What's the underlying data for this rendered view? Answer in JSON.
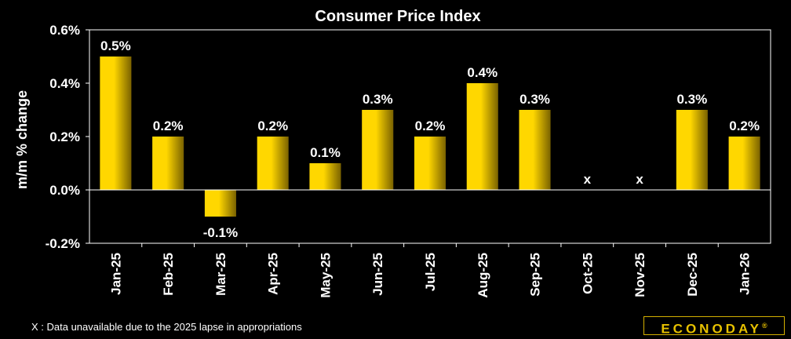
{
  "chart_data": {
    "type": "bar",
    "title": "Consumer Price Index",
    "ylabel": "m/m % change",
    "xlabel": "",
    "ylim": [
      -0.2,
      0.6
    ],
    "yticks": [
      -0.2,
      0.0,
      0.2,
      0.4,
      0.6
    ],
    "ytick_labels": [
      "-0.2%",
      "0.0%",
      "0.2%",
      "0.4%",
      "0.6%"
    ],
    "categories": [
      "Jan-25",
      "Feb-25",
      "Mar-25",
      "Apr-25",
      "May-25",
      "Jun-25",
      "Jul-25",
      "Aug-25",
      "Sep-25",
      "Oct-25",
      "Nov-25",
      "Dec-25",
      "Jan-26"
    ],
    "values": [
      0.5,
      0.2,
      -0.1,
      0.2,
      0.1,
      0.3,
      0.2,
      0.4,
      0.3,
      null,
      null,
      0.3,
      0.2
    ],
    "data_labels": [
      "0.5%",
      "0.2%",
      "-0.1%",
      "0.2%",
      "0.1%",
      "0.3%",
      "0.2%",
      "0.4%",
      "0.3%",
      "x",
      "x",
      "0.3%",
      "0.2%"
    ],
    "grid": false,
    "bar_color_light": "#ffd700",
    "bar_color_dark": "#7a6200",
    "axis_color": "#ffffff"
  },
  "footnote": "X : Data unavailable due to the 2025 lapse in appropriations",
  "logo": {
    "text": "ECONODAY",
    "mark": "®"
  }
}
